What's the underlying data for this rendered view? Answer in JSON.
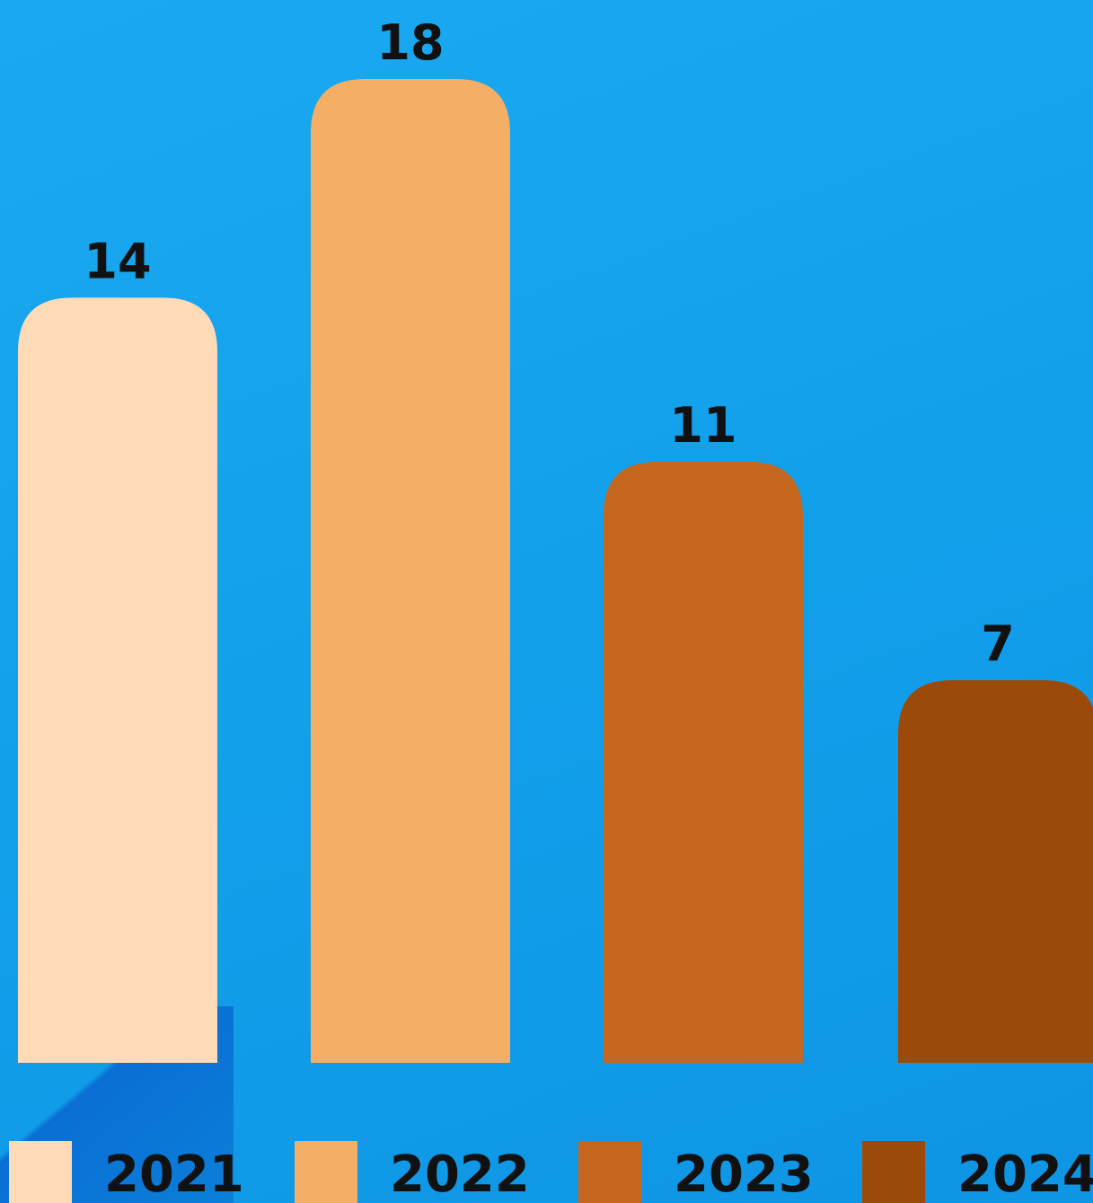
{
  "chart_data": {
    "type": "bar",
    "categories": [
      "2021",
      "2022",
      "2023",
      "2024"
    ],
    "values": [
      14,
      18,
      11,
      7
    ],
    "ylim": [
      0,
      18
    ],
    "grid": false,
    "legend": {
      "placement": "bottom",
      "entries": [
        "2021",
        "2022",
        "2023",
        "2024"
      ]
    },
    "colors": [
      "#fedbb6",
      "#f4ae66",
      "#c5671f",
      "#9c4a09"
    ],
    "background": "#129fea"
  }
}
